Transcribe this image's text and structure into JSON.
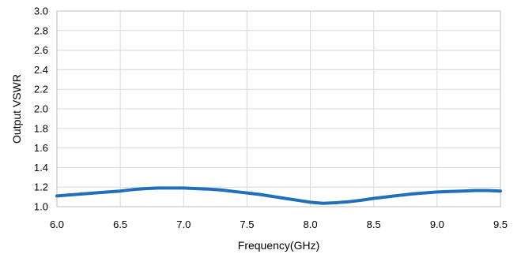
{
  "chart_data": {
    "type": "line",
    "title": "",
    "xlabel": "Frequency(GHz)",
    "ylabel": "Output VSWR",
    "xlim": [
      6.0,
      9.5
    ],
    "ylim": [
      1.0,
      3.0
    ],
    "grid": true,
    "xticks": [
      "6.0",
      "6.5",
      "7.0",
      "7.5",
      "8.0",
      "8.5",
      "9.0",
      "9.5"
    ],
    "yticks": [
      "1.0",
      "1.2",
      "1.4",
      "1.6",
      "1.8",
      "2.0",
      "2.2",
      "2.4",
      "2.6",
      "2.8",
      "3.0"
    ],
    "colors": {
      "series": "#1f6fba",
      "grid": "#d9d9d9",
      "frame": "#bfbfbf"
    },
    "series": [
      {
        "x": [
          6.0,
          6.1,
          6.2,
          6.3,
          6.4,
          6.5,
          6.6,
          6.7,
          6.8,
          6.9,
          7.0,
          7.1,
          7.2,
          7.3,
          7.4,
          7.5,
          7.6,
          7.7,
          7.8,
          7.9,
          8.0,
          8.1,
          8.2,
          8.3,
          8.4,
          8.5,
          8.6,
          8.7,
          8.8,
          8.9,
          9.0,
          9.1,
          9.2,
          9.3,
          9.4,
          9.5
        ],
        "y": [
          1.11,
          1.12,
          1.13,
          1.14,
          1.15,
          1.16,
          1.175,
          1.185,
          1.19,
          1.19,
          1.19,
          1.185,
          1.18,
          1.17,
          1.155,
          1.14,
          1.125,
          1.105,
          1.085,
          1.065,
          1.045,
          1.035,
          1.04,
          1.05,
          1.065,
          1.085,
          1.1,
          1.115,
          1.13,
          1.14,
          1.15,
          1.155,
          1.16,
          1.165,
          1.165,
          1.16
        ]
      }
    ]
  }
}
